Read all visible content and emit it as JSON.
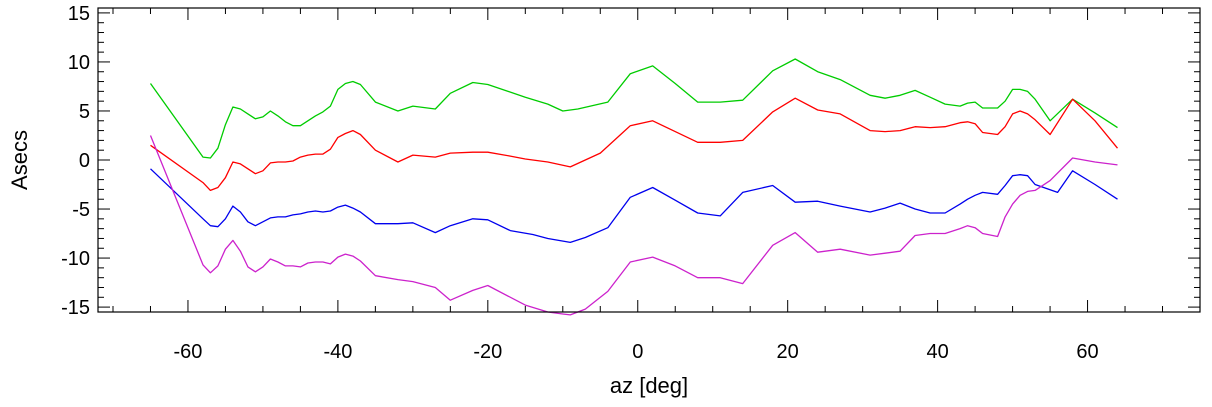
{
  "chart_data": {
    "type": "line",
    "xlabel": "az [deg]",
    "ylabel": "Asecs",
    "xlim": [
      -72,
      75
    ],
    "ylim": [
      -15.5,
      15.5
    ],
    "xticks": [
      -60,
      -40,
      -20,
      0,
      20,
      40,
      60
    ],
    "yticks": [
      -15,
      -10,
      -5,
      0,
      5,
      10,
      15
    ],
    "x_minor_step": 5,
    "y_minor_step": 1,
    "grid": false,
    "legend": "none",
    "series": [
      {
        "color": "#00cc00",
        "x": [
          -65,
          -58,
          -57,
          -56,
          -55,
          -54,
          -53,
          -52,
          -51,
          -50,
          -49,
          -48,
          -47,
          -46,
          -45,
          -44,
          -43,
          -42,
          -41,
          -40,
          -39,
          -38,
          -37,
          -35,
          -32,
          -30,
          -27,
          -25,
          -22,
          -20,
          -15,
          -12,
          -10,
          -8,
          -4,
          -1,
          2,
          5,
          8,
          11,
          14,
          18,
          21,
          24,
          27,
          31,
          33,
          35,
          37,
          39,
          41,
          43,
          44,
          45,
          46,
          48,
          49,
          50,
          51,
          52,
          53,
          55,
          58,
          61,
          64
        ],
        "y": [
          7.8,
          0.3,
          0.2,
          1.2,
          3.6,
          5.4,
          5.2,
          4.7,
          4.2,
          4.4,
          5.0,
          4.5,
          3.9,
          3.5,
          3.5,
          4.0,
          4.5,
          4.9,
          5.5,
          7.2,
          7.8,
          8.0,
          7.7,
          5.9,
          5.0,
          5.5,
          5.2,
          6.8,
          7.9,
          7.7,
          6.4,
          5.7,
          5.0,
          5.2,
          5.9,
          8.8,
          9.6,
          7.8,
          5.9,
          5.9,
          6.1,
          9.1,
          10.3,
          9.0,
          8.2,
          6.6,
          6.3,
          6.6,
          7.1,
          6.4,
          5.7,
          5.5,
          5.8,
          5.9,
          5.3,
          5.3,
          6.0,
          7.2,
          7.2,
          7.0,
          6.2,
          4.0,
          6.2,
          4.8,
          3.3
        ]
      },
      {
        "color": "#ff0000",
        "x": [
          -65,
          -58,
          -57,
          -56,
          -55,
          -54,
          -53,
          -52,
          -51,
          -50,
          -49,
          -48,
          -47,
          -46,
          -45,
          -44,
          -43,
          -42,
          -41,
          -40,
          -39,
          -38,
          -37,
          -35,
          -32,
          -30,
          -27,
          -25,
          -22,
          -20,
          -17,
          -15,
          -12,
          -9,
          -5,
          -1,
          2,
          5,
          8,
          11,
          14,
          18,
          21,
          24,
          27,
          31,
          33,
          35,
          37,
          39,
          41,
          43,
          44,
          45,
          46,
          48,
          49,
          50,
          51,
          52,
          53,
          55,
          58,
          61,
          64
        ],
        "y": [
          1.5,
          -2.3,
          -3.1,
          -2.8,
          -1.8,
          -0.2,
          -0.4,
          -0.9,
          -1.4,
          -1.1,
          -0.3,
          -0.2,
          -0.2,
          -0.1,
          0.3,
          0.5,
          0.6,
          0.6,
          1.1,
          2.3,
          2.7,
          3.0,
          2.6,
          1.0,
          -0.2,
          0.5,
          0.3,
          0.7,
          0.8,
          0.8,
          0.4,
          0.1,
          -0.2,
          -0.7,
          0.7,
          3.5,
          4.0,
          2.9,
          1.8,
          1.8,
          2.0,
          4.9,
          6.3,
          5.1,
          4.7,
          3.0,
          2.9,
          3.0,
          3.4,
          3.3,
          3.4,
          3.8,
          3.9,
          3.7,
          2.8,
          2.6,
          3.4,
          4.7,
          5.0,
          4.7,
          4.1,
          2.6,
          6.2,
          4.0,
          1.2
        ]
      },
      {
        "color": "#0000ee",
        "x": [
          -65,
          -58,
          -57,
          -56,
          -55,
          -54,
          -53,
          -52,
          -51,
          -50,
          -49,
          -48,
          -47,
          -46,
          -45,
          -44,
          -43,
          -42,
          -41,
          -40,
          -39,
          -38,
          -37,
          -35,
          -32,
          -30,
          -27,
          -25,
          -22,
          -20,
          -17,
          -14,
          -12,
          -9,
          -7,
          -4,
          -1,
          2,
          5,
          8,
          11,
          14,
          18,
          21,
          24,
          27,
          31,
          33,
          35,
          37,
          39,
          41,
          43,
          44,
          45,
          46,
          48,
          49,
          50,
          51,
          52,
          53,
          56,
          58,
          61,
          64
        ],
        "y": [
          -0.9,
          -6.0,
          -6.7,
          -6.8,
          -6.0,
          -4.7,
          -5.3,
          -6.3,
          -6.7,
          -6.3,
          -5.9,
          -5.8,
          -5.8,
          -5.6,
          -5.5,
          -5.3,
          -5.2,
          -5.3,
          -5.2,
          -4.8,
          -4.6,
          -4.9,
          -5.3,
          -6.5,
          -6.5,
          -6.4,
          -7.4,
          -6.7,
          -6.0,
          -6.1,
          -7.2,
          -7.6,
          -8.0,
          -8.4,
          -7.9,
          -6.9,
          -3.8,
          -2.8,
          -4.1,
          -5.4,
          -5.7,
          -3.3,
          -2.6,
          -4.3,
          -4.2,
          -4.7,
          -5.3,
          -4.9,
          -4.4,
          -5.0,
          -5.4,
          -5.4,
          -4.5,
          -4.0,
          -3.6,
          -3.3,
          -3.5,
          -2.6,
          -1.6,
          -1.5,
          -1.6,
          -2.5,
          -3.3,
          -1.1,
          -2.5,
          -4.0
        ]
      },
      {
        "color": "#cc22cc",
        "x": [
          -65,
          -58,
          -57,
          -56,
          -55,
          -54,
          -53,
          -52,
          -51,
          -50,
          -49,
          -48,
          -47,
          -46,
          -45,
          -44,
          -43,
          -42,
          -41,
          -40,
          -39,
          -38,
          -37,
          -35,
          -32,
          -30,
          -27,
          -25,
          -22,
          -20,
          -15,
          -12,
          -10,
          -9,
          -7,
          -4,
          -1,
          2,
          5,
          8,
          11,
          14,
          18,
          21,
          24,
          27,
          31,
          33,
          35,
          37,
          39,
          41,
          43,
          44,
          45,
          46,
          48,
          49,
          50,
          51,
          52,
          53,
          55,
          58,
          61,
          64
        ],
        "y": [
          2.5,
          -10.7,
          -11.5,
          -10.8,
          -9.1,
          -8.2,
          -9.3,
          -10.9,
          -11.4,
          -10.9,
          -10.1,
          -10.4,
          -10.8,
          -10.8,
          -10.9,
          -10.5,
          -10.4,
          -10.4,
          -10.6,
          -9.9,
          -9.6,
          -9.8,
          -10.3,
          -11.8,
          -12.2,
          -12.4,
          -13.0,
          -14.3,
          -13.3,
          -12.8,
          -14.8,
          -15.5,
          -15.7,
          -15.8,
          -15.2,
          -13.4,
          -10.4,
          -9.9,
          -10.8,
          -12.0,
          -12.0,
          -12.6,
          -8.7,
          -7.4,
          -9.4,
          -9.1,
          -9.7,
          -9.5,
          -9.3,
          -7.7,
          -7.5,
          -7.5,
          -7.0,
          -6.7,
          -6.9,
          -7.5,
          -7.8,
          -5.8,
          -4.5,
          -3.6,
          -3.2,
          -3.1,
          -2.1,
          0.2,
          -0.2,
          -0.5
        ]
      }
    ]
  }
}
